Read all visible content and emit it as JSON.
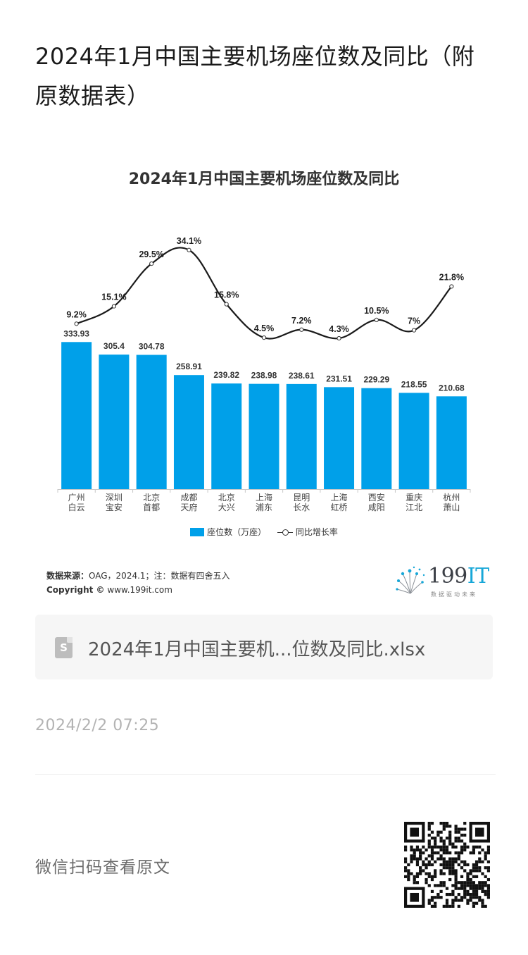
{
  "article": {
    "title": "2024年1月中国主要机场座位数及同比（附原数据表）"
  },
  "chart_data": {
    "type": "bar",
    "title": "2024年1月中国主要机场座位数及同比",
    "categories": [
      "广州白云",
      "深圳宝安",
      "北京首都",
      "成都天府",
      "北京大兴",
      "上海浦东",
      "昆明长水",
      "上海虹桥",
      "西安咸阳",
      "重庆江北",
      "杭州萧山"
    ],
    "category_lines": [
      [
        "广州",
        "白云"
      ],
      [
        "深圳",
        "宝安"
      ],
      [
        "北京",
        "首都"
      ],
      [
        "成都",
        "天府"
      ],
      [
        "北京",
        "大兴"
      ],
      [
        "上海",
        "浦东"
      ],
      [
        "昆明",
        "长水"
      ],
      [
        "上海",
        "虹桥"
      ],
      [
        "西安",
        "咸阳"
      ],
      [
        "重庆",
        "江北"
      ],
      [
        "杭州",
        "萧山"
      ]
    ],
    "series": [
      {
        "name": "座位数（万座）",
        "type": "bar",
        "values": [
          333.93,
          305.4,
          304.78,
          258.91,
          239.82,
          238.98,
          238.61,
          231.51,
          229.29,
          218.55,
          210.68
        ],
        "labels": [
          "333.93",
          "305.4",
          "304.78",
          "258.91",
          "239.82",
          "238.98",
          "238.61",
          "231.51",
          "229.29",
          "218.55",
          "210.68"
        ]
      },
      {
        "name": "同比增长率",
        "type": "line",
        "values": [
          9.2,
          15.1,
          29.5,
          34.1,
          15.8,
          4.5,
          7.2,
          4.3,
          10.5,
          7.0,
          21.8
        ],
        "labels": [
          "9.2%",
          "15.1%",
          "29.5%",
          "34.1%",
          "15.8%",
          "4.5%",
          "7.2%",
          "4.3%",
          "10.5%",
          "7%",
          "21.8%"
        ]
      }
    ],
    "legend_position": "bottom",
    "grid": false,
    "colors": {
      "bar": "#00a0e9",
      "line": "#1a1a1a"
    }
  },
  "source": {
    "label": "数据来源：",
    "text": "OAG，2024.1；注：数据有四舍五入",
    "copyright_label": "Copyright ©",
    "copyright_text": "www.199it.com"
  },
  "logo": {
    "main": "199",
    "accent": "IT",
    "tagline": "数据驱动未来"
  },
  "attachment": {
    "file_name": "2024年1月中国主要机...位数及同比.xlsx",
    "icon": "spreadsheet-file-icon"
  },
  "meta": {
    "timestamp": "2024/2/2 07:25"
  },
  "footer": {
    "scan_text": "微信扫码查看原文",
    "qr_icon": "qr-code-icon"
  }
}
